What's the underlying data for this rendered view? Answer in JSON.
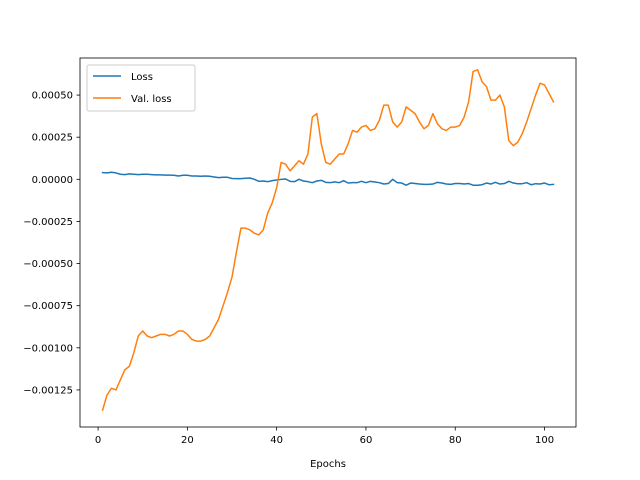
{
  "chart_data": {
    "type": "line",
    "title": "",
    "xlabel": "Epochs",
    "ylabel": "",
    "xlim": [
      -4.05,
      107.05
    ],
    "ylim": [
      -0.00147,
      0.00072
    ],
    "xticks": [
      0,
      20,
      40,
      60,
      80,
      100
    ],
    "xtick_labels": [
      "0",
      "20",
      "40",
      "60",
      "80",
      "100"
    ],
    "yticks": [
      -0.00125,
      -0.001,
      -0.00075,
      -0.0005,
      -0.00025,
      0,
      0.00025,
      0.0005
    ],
    "ytick_labels": [
      "−0.00125",
      "−0.00100",
      "−0.00075",
      "−0.00050",
      "−0.00025",
      "0.00000",
      "0.00025",
      "0.00050"
    ],
    "grid": false,
    "legend_position": "upper-left",
    "series": [
      {
        "name": "Loss",
        "color": "#1f77b4",
        "x": [
          1,
          2,
          3,
          4,
          5,
          6,
          7,
          8,
          9,
          10,
          11,
          12,
          13,
          14,
          15,
          16,
          17,
          18,
          19,
          20,
          21,
          22,
          23,
          24,
          25,
          26,
          27,
          28,
          29,
          30,
          31,
          32,
          33,
          34,
          35,
          36,
          37,
          38,
          39,
          40,
          41,
          42,
          43,
          44,
          45,
          46,
          47,
          48,
          49,
          50,
          51,
          52,
          53,
          54,
          55,
          56,
          57,
          58,
          59,
          60,
          61,
          62,
          63,
          64,
          65,
          66,
          67,
          68,
          69,
          70,
          71,
          72,
          73,
          74,
          75,
          76,
          77,
          78,
          79,
          80,
          81,
          82,
          83,
          84,
          85,
          86,
          87,
          88,
          89,
          90,
          91,
          92,
          93,
          94,
          95,
          96,
          97,
          98,
          99,
          100,
          101,
          102
        ],
        "y": [
          4e-05,
          3.8e-05,
          4.2e-05,
          3.8e-05,
          3e-05,
          2.8e-05,
          3.2e-05,
          3e-05,
          2.8e-05,
          3e-05,
          3e-05,
          2.8e-05,
          2.6e-05,
          2.6e-05,
          2.5e-05,
          2.5e-05,
          2.4e-05,
          2e-05,
          2.4e-05,
          2.4e-05,
          2e-05,
          2e-05,
          1.8e-05,
          2e-05,
          1.8e-05,
          1.4e-05,
          1e-05,
          1.2e-05,
          1.2e-05,
          5e-06,
          4e-06,
          4e-06,
          6e-06,
          8e-06,
          0,
          -1.2e-05,
          -1e-05,
          -1.4e-05,
          -8e-06,
          -4e-06,
          0,
          2e-06,
          -1.2e-05,
          -1.4e-05,
          0,
          -1e-05,
          -1.4e-05,
          -2e-05,
          -1e-05,
          -6e-06,
          -1.8e-05,
          -2e-05,
          -1.5e-05,
          -2e-05,
          -8e-06,
          -2.2e-05,
          -2e-05,
          -2e-05,
          -1.2e-05,
          -2e-05,
          -1.2e-05,
          -1.6e-05,
          -2e-05,
          -2.8e-05,
          -2.5e-05,
          0,
          -2e-05,
          -2.2e-05,
          -3.5e-05,
          -2.2e-05,
          -2.5e-05,
          -2.8e-05,
          -3e-05,
          -3e-05,
          -2.8e-05,
          -1.8e-05,
          -2.2e-05,
          -2.8e-05,
          -3e-05,
          -2.5e-05,
          -2.5e-05,
          -2.8e-05,
          -2.5e-05,
          -3.5e-05,
          -3.5e-05,
          -3.2e-05,
          -2.2e-05,
          -2.8e-05,
          -1.8e-05,
          -2.8e-05,
          -2.5e-05,
          -1.2e-05,
          -2.2e-05,
          -2.6e-05,
          -2.6e-05,
          -2e-05,
          -3.2e-05,
          -2.6e-05,
          -2.8e-05,
          -2.2e-05,
          -3.2e-05,
          -3e-05
        ]
      },
      {
        "name": "Val. loss",
        "color": "#ff7f0e",
        "x": [
          1,
          2,
          3,
          4,
          5,
          6,
          7,
          8,
          9,
          10,
          11,
          12,
          13,
          14,
          15,
          16,
          17,
          18,
          19,
          20,
          21,
          22,
          23,
          24,
          25,
          26,
          27,
          28,
          29,
          30,
          31,
          32,
          33,
          34,
          35,
          36,
          37,
          38,
          39,
          40,
          41,
          42,
          43,
          44,
          45,
          46,
          47,
          48,
          49,
          50,
          51,
          52,
          53,
          54,
          55,
          56,
          57,
          58,
          59,
          60,
          61,
          62,
          63,
          64,
          65,
          66,
          67,
          68,
          69,
          70,
          71,
          72,
          73,
          74,
          75,
          76,
          77,
          78,
          79,
          80,
          81,
          82,
          83,
          84,
          85,
          86,
          87,
          88,
          89,
          90,
          91,
          92,
          93,
          94,
          95,
          96,
          97,
          98,
          99,
          100,
          101,
          102
        ],
        "y": [
          -0.00137,
          -0.00128,
          -0.00124,
          -0.00125,
          -0.00119,
          -0.00113,
          -0.00111,
          -0.00103,
          -0.00093,
          -0.0009,
          -0.00093,
          -0.00094,
          -0.00093,
          -0.00092,
          -0.00092,
          -0.00093,
          -0.00092,
          -0.0009,
          -0.0009,
          -0.00092,
          -0.00095,
          -0.00096,
          -0.00096,
          -0.00095,
          -0.00093,
          -0.00088,
          -0.00083,
          -0.00075,
          -0.00067,
          -0.00058,
          -0.00043,
          -0.00029,
          -0.00029,
          -0.0003,
          -0.00032,
          -0.00033,
          -0.0003,
          -0.0002,
          -0.00014,
          -5e-05,
          0.0001,
          9e-05,
          5e-05,
          8e-05,
          0.00011,
          9e-05,
          0.00015,
          0.00037,
          0.00039,
          0.00021,
          0.0001,
          9e-05,
          0.00012,
          0.00015,
          0.00015,
          0.00021,
          0.00029,
          0.00028,
          0.00031,
          0.00032,
          0.00029,
          0.0003,
          0.00035,
          0.00044,
          0.00044,
          0.00034,
          0.00031,
          0.00034,
          0.00043,
          0.00041,
          0.00039,
          0.00034,
          0.0003,
          0.00032,
          0.00039,
          0.00033,
          0.0003,
          0.00029,
          0.00031,
          0.00031,
          0.00032,
          0.00037,
          0.00046,
          0.00064,
          0.00065,
          0.00058,
          0.00055,
          0.00047,
          0.00047,
          0.0005,
          0.00043,
          0.00023,
          0.0002,
          0.00022,
          0.00027,
          0.00034,
          0.00042,
          0.0005,
          0.00057,
          0.00056,
          0.00051,
          0.00046
        ]
      }
    ]
  },
  "colors": {
    "axis": "#000000",
    "background": "#ffffff"
  }
}
